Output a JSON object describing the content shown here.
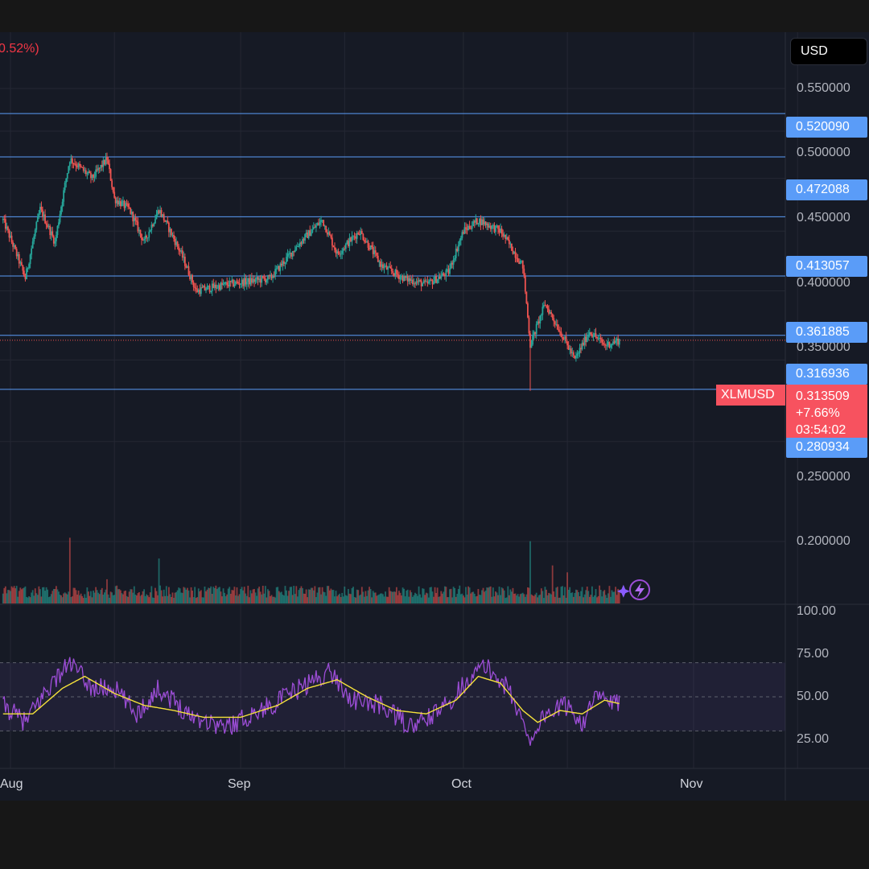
{
  "header": {
    "change_text": "0.52%)"
  },
  "currency": "USD",
  "symbol": "XLMUSD",
  "last_price": {
    "price": "0.313509",
    "change": "+7.66%",
    "countdown": "03:54:02"
  },
  "colors": {
    "up": "#26a69a",
    "down": "#ef5350",
    "level": "#5a9cf8",
    "rsi": "#9c4dd6",
    "rsi_ma": "#f5e23b",
    "background": "#161a25"
  },
  "icons": {
    "flash": "lightning-bolt-icon"
  },
  "chart_data": [
    {
      "type": "candlestick",
      "price_axis_ticks": [
        "0.550000",
        "0.500000",
        "0.450000",
        "0.400000",
        "0.350000",
        "0.250000",
        "0.200000"
      ],
      "horizontal_levels": [
        "0.520090",
        "0.472088",
        "0.413057",
        "0.361885",
        "0.316936",
        "0.280934"
      ],
      "x_tick_labels": [
        "Aug",
        "Sep",
        "Oct",
        "Nov"
      ],
      "scale": "log",
      "ylim": [
        0.18,
        0.58
      ],
      "price_path": [
        [
          "Jul 31",
          0.41
        ],
        [
          "Aug 3",
          0.36
        ],
        [
          "Aug 5",
          0.42
        ],
        [
          "Aug 7",
          0.39
        ],
        [
          "Aug 8",
          0.43
        ],
        [
          "Aug 9",
          0.47
        ],
        [
          "Aug 12",
          0.45
        ],
        [
          "Aug 14",
          0.47
        ],
        [
          "Aug 15",
          0.43
        ],
        [
          "Aug 17",
          0.42
        ],
        [
          "Aug 19",
          0.39
        ],
        [
          "Aug 21",
          0.42
        ],
        [
          "Aug 24",
          0.38
        ],
        [
          "Aug 26",
          0.35
        ],
        [
          "Aug 30",
          0.355
        ],
        [
          "Sep 5",
          0.36
        ],
        [
          "Sep 9",
          0.39
        ],
        [
          "Sep 12",
          0.41
        ],
        [
          "Sep 14",
          0.38
        ],
        [
          "Sep 17",
          0.4
        ],
        [
          "Sep 20",
          0.37
        ],
        [
          "Sep 23",
          0.36
        ],
        [
          "Sep 26",
          0.355
        ],
        [
          "Sep 29",
          0.365
        ],
        [
          "Oct 1",
          0.4
        ],
        [
          "Oct 3",
          0.41
        ],
        [
          "Oct 6",
          0.4
        ],
        [
          "Oct 9",
          0.37
        ],
        [
          "Oct 10",
          0.31
        ],
        [
          "Oct 12",
          0.34
        ],
        [
          "Oct 14",
          0.32
        ],
        [
          "Oct 16",
          0.3
        ],
        [
          "Oct 18",
          0.32
        ],
        [
          "Oct 20",
          0.31
        ],
        [
          "Oct 22",
          0.313509
        ]
      ],
      "wick_low": {
        "date": "Oct 10",
        "value": 0.28
      }
    },
    {
      "type": "bar",
      "name": "volume",
      "spikes": [
        {
          "date": "Aug 9",
          "level": 0.95
        },
        {
          "date": "Aug 14",
          "level": 0.35
        },
        {
          "date": "Aug 21",
          "level": 0.65
        },
        {
          "date": "Oct 10",
          "level": 0.9
        },
        {
          "date": "Oct 13",
          "level": 0.55
        },
        {
          "date": "Oct 15",
          "level": 0.45
        }
      ]
    },
    {
      "type": "line",
      "name": "RSI",
      "y_ticks": [
        "100.00",
        "75.00",
        "50.00",
        "25.00"
      ],
      "band": [
        30,
        70
      ],
      "ylim": [
        0,
        100
      ],
      "rsi_path": [
        [
          "Jul 31",
          45
        ],
        [
          "Aug 3",
          35
        ],
        [
          "Aug 6",
          55
        ],
        [
          "Aug 9",
          70
        ],
        [
          "Aug 12",
          55
        ],
        [
          "Aug 15",
          55
        ],
        [
          "Aug 18",
          40
        ],
        [
          "Aug 21",
          55
        ],
        [
          "Aug 25",
          40
        ],
        [
          "Aug 30",
          32
        ],
        [
          "Sep 5",
          45
        ],
        [
          "Sep 9",
          55
        ],
        [
          "Sep 13",
          65
        ],
        [
          "Sep 16",
          48
        ],
        [
          "Sep 20",
          45
        ],
        [
          "Sep 24",
          32
        ],
        [
          "Sep 28",
          42
        ],
        [
          "Oct 2",
          62
        ],
        [
          "Oct 4",
          68
        ],
        [
          "Oct 7",
          55
        ],
        [
          "Oct 10",
          25
        ],
        [
          "Oct 12",
          40
        ],
        [
          "Oct 15",
          45
        ],
        [
          "Oct 17",
          35
        ],
        [
          "Oct 19",
          50
        ],
        [
          "Oct 22",
          45
        ]
      ],
      "ma_path": [
        [
          "Jul 31",
          40
        ],
        [
          "Aug 4",
          40
        ],
        [
          "Aug 8",
          55
        ],
        [
          "Aug 11",
          62
        ],
        [
          "Aug 15",
          52
        ],
        [
          "Aug 19",
          45
        ],
        [
          "Aug 23",
          42
        ],
        [
          "Aug 27",
          38
        ],
        [
          "Sep 1",
          38
        ],
        [
          "Sep 6",
          45
        ],
        [
          "Sep 10",
          55
        ],
        [
          "Sep 14",
          60
        ],
        [
          "Sep 18",
          50
        ],
        [
          "Sep 22",
          42
        ],
        [
          "Sep 26",
          40
        ],
        [
          "Sep 30",
          48
        ],
        [
          "Oct 3",
          62
        ],
        [
          "Oct 6",
          58
        ],
        [
          "Oct 9",
          42
        ],
        [
          "Oct 11",
          35
        ],
        [
          "Oct 14",
          42
        ],
        [
          "Oct 17",
          40
        ],
        [
          "Oct 20",
          48
        ],
        [
          "Oct 22",
          46
        ]
      ]
    }
  ]
}
